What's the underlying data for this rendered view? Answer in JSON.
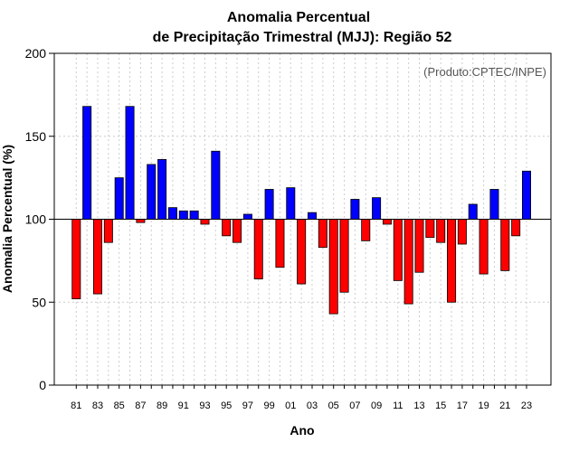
{
  "chart_data": {
    "type": "bar",
    "title_line1": "Anomalia Percentual",
    "title_line2": "de Precipitação Trimestral (MJJ): Região 52",
    "xlabel": "Ano",
    "ylabel": "Anomalia Percentual (%)",
    "annotation": "(Produto:CPTEC/INPE)",
    "baseline": 100,
    "ylim": [
      0,
      200
    ],
    "yticks": [
      0,
      50,
      100,
      150,
      200
    ],
    "xtick_labels": [
      "81",
      "83",
      "85",
      "87",
      "89",
      "91",
      "93",
      "95",
      "97",
      "99",
      "01",
      "03",
      "05",
      "07",
      "09",
      "11",
      "13",
      "15",
      "17",
      "19",
      "21",
      "23"
    ],
    "categories": [
      "81",
      "82",
      "83",
      "84",
      "85",
      "86",
      "87",
      "88",
      "89",
      "90",
      "91",
      "92",
      "93",
      "94",
      "95",
      "96",
      "97",
      "98",
      "99",
      "00",
      "01",
      "02",
      "03",
      "04",
      "05",
      "06",
      "07",
      "08",
      "09",
      "10",
      "11",
      "12",
      "13",
      "14",
      "15",
      "16",
      "17",
      "18",
      "19",
      "20",
      "21",
      "22",
      "23"
    ],
    "values": [
      52,
      168,
      55,
      86,
      125,
      168,
      98,
      133,
      136,
      107,
      105,
      105,
      97,
      141,
      90,
      86,
      103,
      64,
      118,
      71,
      119,
      61,
      104,
      83,
      43,
      56,
      112,
      87,
      113,
      97,
      63,
      49,
      68,
      89,
      86,
      50,
      85,
      109,
      67,
      118,
      69,
      90,
      129
    ],
    "colors": {
      "above": "#0000ff",
      "below": "#ff0000",
      "edge": "#000000",
      "grid": "#cccccc"
    }
  }
}
